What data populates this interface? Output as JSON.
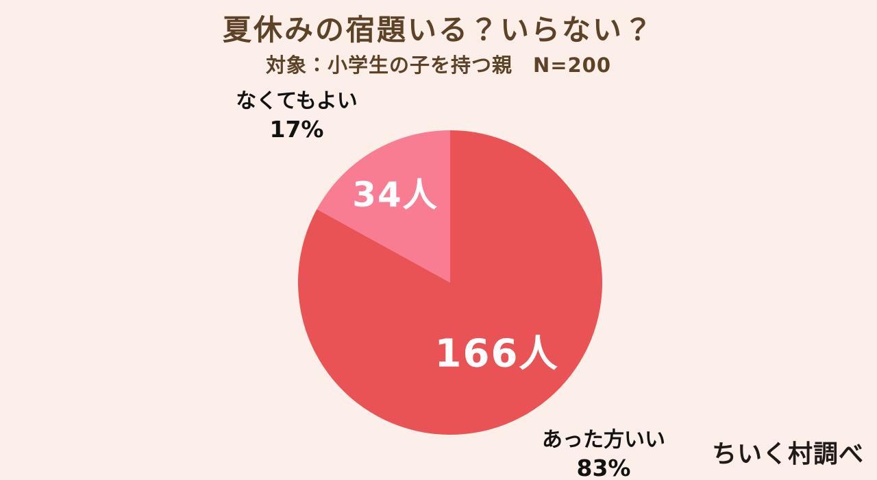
{
  "header": {
    "title": "夏休みの宿題いる？いらない？",
    "subtitle": "対象：小学生の子を持つ親　N=200"
  },
  "footer": {
    "credit": "ちいく村調べ"
  },
  "colors": {
    "background": "#fceee9",
    "heading_text": "#5c4226",
    "annotation_text": "#121212",
    "credit_text": "#201b18",
    "slice_count_text": "#ffffff",
    "slice_yes": "#ea5355",
    "slice_no": "#f87d93"
  },
  "chart_data": {
    "type": "pie",
    "title": "夏休みの宿題いる？いらない？",
    "subtitle": "対象：小学生の子を持つ親　N=200",
    "total": 200,
    "start_angle_deg": 0,
    "direction": "clockwise",
    "legend_position": "none",
    "slices": [
      {
        "label": "あった方いい",
        "count": 166,
        "percent": 83,
        "count_label": "166人",
        "percent_label": "83%",
        "color": "#ea5355"
      },
      {
        "label": "なくてもよい",
        "count": 34,
        "percent": 17,
        "count_label": "34人",
        "percent_label": "17%",
        "color": "#f87d93"
      }
    ]
  }
}
